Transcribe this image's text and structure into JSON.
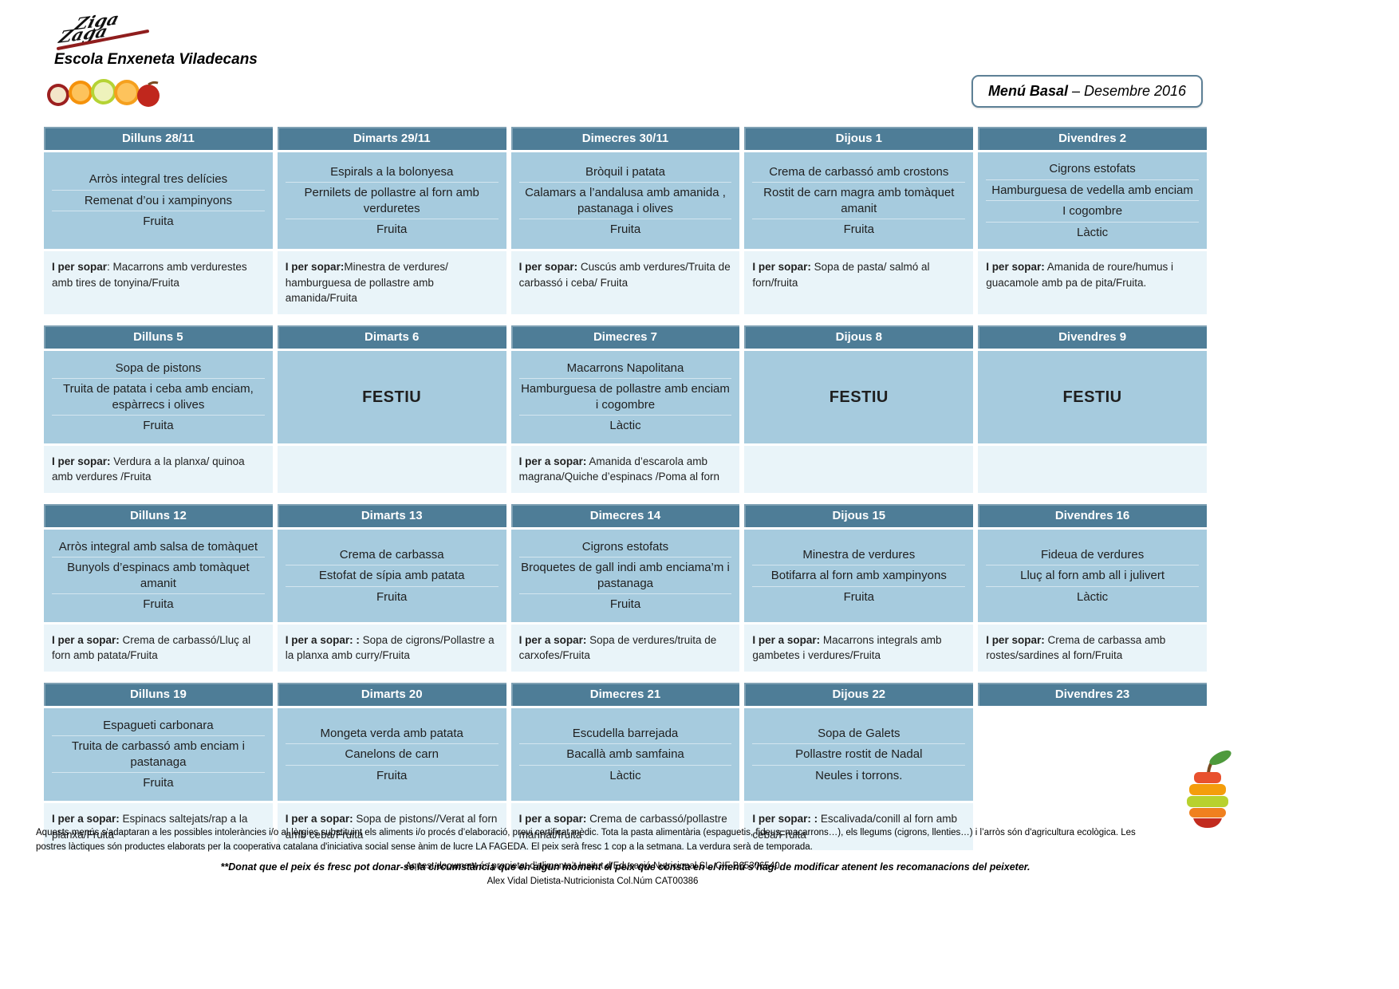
{
  "page": {
    "school": "Escola Enxeneta Viladecans",
    "logo": {
      "word1": "Ziga",
      "word2": "Zaga"
    },
    "badge": {
      "bold": "Menú Basal",
      "rest": " – Desembre 2016"
    },
    "footnote": "**Donat que el peix és fresc pot donar-se la circumstància que en algun moment el peix que consta en el menú s’hagi de modificar atenent les recomanacions del peixeter.",
    "legal": {
      "p1": "Aquests menús s’adaptaran a les possibles intoleràncies i/o al·lèrgies substituint els aliments i/o procés d’elaboració, previ certificat mèdic. Tota la pasta alimentària (espaguetis, fideus, macarrons…), els llegums (cigrons, llenties…) i l’arròs són d'agricultura ecològica. Les postres làctiques són productes elaborats per la cooperativa catalana d'iniciativa social sense ànim de lucre LA FAGEDA. El peix serà fresc 1 cop a la setmana. La verdura serà de temporada.",
      "p2": "Aquest document és propietat d’alimenta’t Insitut d’Educació Nutricional SL, CIF B65306540",
      "p3": "Alex Vidal Dietista-Nutricionista Col.Núm CAT00386"
    },
    "colors": {
      "day_header_bg": "#4e7d97",
      "lunch_bg": "#a6cbde",
      "dinner_bg": "#e9f4f9",
      "logo_swoosh_red": "#8f1d1d"
    },
    "icons": {
      "logo": "ziga-zaga-logo",
      "fruit_strip": "fruit-slices-image",
      "fruit_stack": "fruit-stack-image"
    }
  },
  "weeks": [
    {
      "days": [
        {
          "header": "Dilluns 28/11",
          "menu": [
            "Arròs integral tres delícies",
            "Remenat d’ou i xampinyons",
            "Fruita"
          ],
          "dinner_label": "I per sopar",
          "dinner": ": Macarrons amb verdurestes amb tires de tonyina/Fruita"
        },
        {
          "header": "Dimarts 29/11",
          "menu": [
            "Espirals a la bolonyesa",
            "Pernilets de pollastre al forn amb verduretes",
            "Fruita"
          ],
          "dinner_label": "I per sopar:",
          "dinner": "Minestra de verdures/ hamburguesa de pollastre amb amanida/Fruita"
        },
        {
          "header": "Dimecres  30/11",
          "menu": [
            "Bròquil i patata",
            "Calamars a l’andalusa amb amanida , pastanaga i olives",
            "Fruita"
          ],
          "dinner_label": "I per sopar:",
          "dinner": " Cuscús amb verdures/Truita de carbassó i ceba/ Fruita"
        },
        {
          "header": "Dijous 1",
          "menu": [
            "Crema de carbassó amb crostons",
            "Rostit de carn magra amb tomàquet amanit",
            "Fruita"
          ],
          "dinner_label": "I per sopar:",
          "dinner": " Sopa de pasta/ salmó al forn/fruita"
        },
        {
          "header": "Divendres 2",
          "menu": [
            "Cigrons estofats",
            "Hamburguesa de vedella amb enciam",
            "I cogombre",
            "Làctic"
          ],
          "dinner_label": "I per sopar:",
          "dinner": "  Amanida de roure/humus i guacamole amb pa de pita/Fruita."
        }
      ]
    },
    {
      "days": [
        {
          "header": "Dilluns 5",
          "menu": [
            "Sopa de pistons",
            "Truita de patata i ceba amb enciam, espàrrecs i olives",
            "Fruita"
          ],
          "dinner_label": "I per sopar:",
          "dinner": " Verdura a la planxa/ quinoa amb verdures /Fruita"
        },
        {
          "header": "Dimarts 6",
          "festiu": "FESTIU"
        },
        {
          "header": "Dimecres 7",
          "menu": [
            "Macarrons Napolitana",
            "Hamburguesa de pollastre amb enciam i cogombre",
            "Làctic"
          ],
          "dinner_label": "I per a sopar:",
          "dinner": " Amanida d’escarola amb magrana/Quiche d’espinacs  /Poma al forn"
        },
        {
          "header": "Dijous 8",
          "festiu": "FESTIU"
        },
        {
          "header": "Divendres 9",
          "festiu": "FESTIU"
        }
      ]
    },
    {
      "days": [
        {
          "header": "Dilluns 12",
          "menu": [
            "Arròs integral amb salsa de tomàquet",
            "Bunyols d’espinacs amb tomàquet amanit",
            "Fruita"
          ],
          "dinner_label": "I per a sopar:",
          "dinner": " Crema de carbassó/Lluç al forn amb patata/Fruita"
        },
        {
          "header": "Dimarts 13",
          "menu": [
            "Crema de carbassa",
            "Estofat de sípia amb patata",
            "Fruita"
          ],
          "dinner_label": "I per a sopar: :",
          "dinner": "  Sopa de cigrons/Pollastre a la planxa amb curry/Fruita"
        },
        {
          "header": "Dimecres 14",
          "menu": [
            "Cigrons estofats",
            "Broquetes de gall indi  amb enciama’m i pastanaga",
            "Fruita"
          ],
          "dinner_label": "I  per a sopar:",
          "dinner": "  Sopa de verdures/truita de carxofes/Fruita"
        },
        {
          "header": "Dijous 15",
          "menu": [
            "Minestra de verdures",
            "Botifarra al forn amb xampinyons",
            "Fruita"
          ],
          "dinner_label": "I  per a sopar:",
          "dinner": " Macarrons integrals amb gambetes i verdures/Fruita"
        },
        {
          "header": "Divendres 16",
          "menu": [
            "Fideua de verdures",
            "Lluç al forn amb all i julivert",
            "Làctic"
          ],
          "dinner_label": "I per sopar:",
          "dinner": " Crema de carbassa amb rostes/sardines al forn/Fruita"
        }
      ]
    },
    {
      "days": [
        {
          "header": "Dilluns 19",
          "menu": [
            "Espagueti carbonara",
            "Truita de carbassó amb enciam i pastanaga",
            "Fruita"
          ],
          "dinner_label": "I per a sopar:",
          "dinner": "  Espinacs saltejats/rap a la planxa/Fruita"
        },
        {
          "header": "Dimarts 20",
          "menu": [
            "Mongeta verda amb patata",
            "Canelons de carn",
            "Fruita"
          ],
          "dinner_label": "I per a sopar:",
          "dinner": "  Sopa de pistons//Verat al forn amb ceba/Fruita"
        },
        {
          "header": "Dimecres 21",
          "menu": [
            "Escudella barrejada",
            "Bacallà amb samfaina",
            "Làctic"
          ],
          "dinner_label": "I  per a sopar:",
          "dinner": " Crema de carbassó/pollastre marinat/fruita"
        },
        {
          "header": "Dijous 22",
          "menu": [
            "Sopa de Galets",
            "Pollastre rostit de Nadal",
            "Neules i torrons."
          ],
          "dinner_label": "I per sopar: :",
          "dinner": " Escalivada/conill al forn amb ceba/Fruita"
        },
        {
          "header": "Divendres 23",
          "empty": true
        }
      ]
    }
  ]
}
